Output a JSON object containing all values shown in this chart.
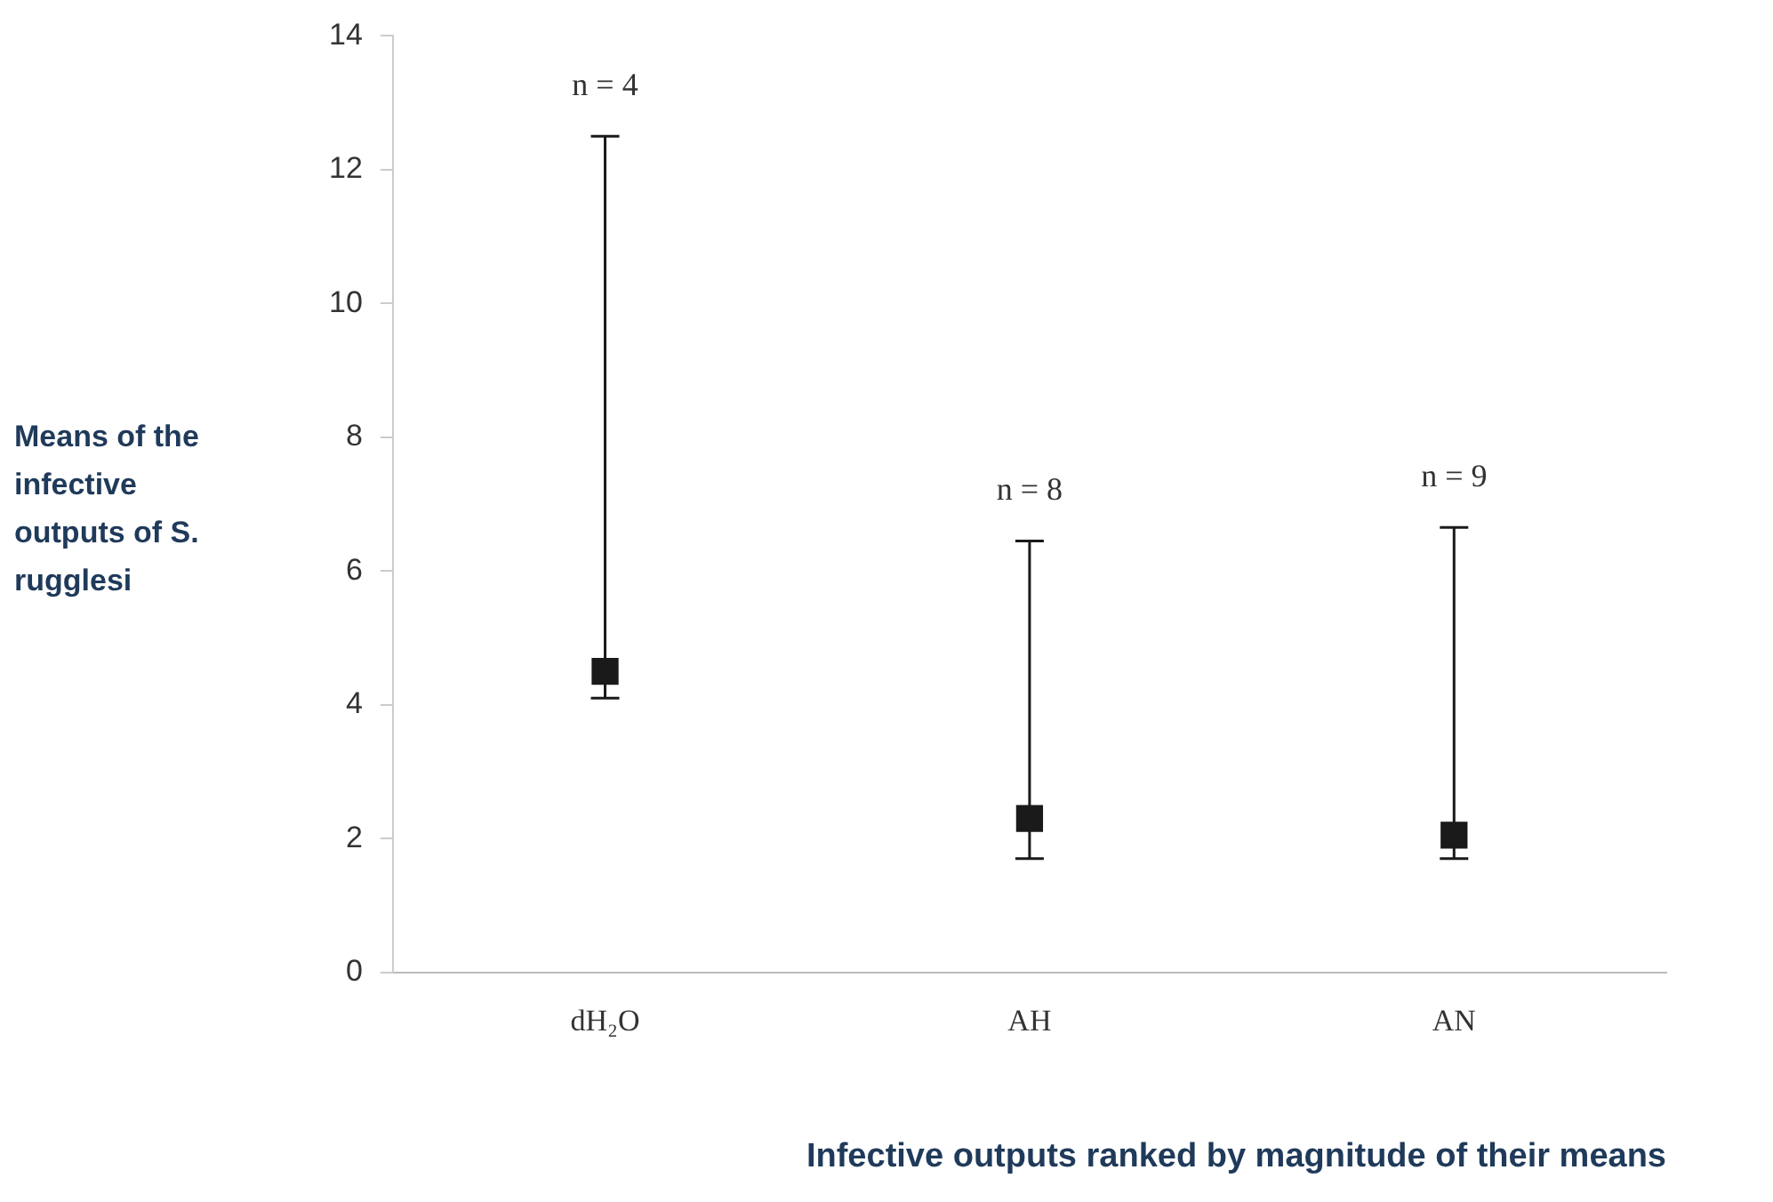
{
  "chart_data": {
    "type": "scatter",
    "xlabel": "Infective outputs ranked by magnitude of their means",
    "ylabel": "Means of the infective outputs of S. rugglesi",
    "categories": [
      "dH₂O",
      "AH",
      "AN"
    ],
    "values": [
      4.5,
      2.3,
      2.05
    ],
    "errors": [
      [
        4.1,
        12.5
      ],
      [
        1.7,
        6.45
      ],
      [
        1.7,
        6.65
      ]
    ],
    "color": "#1a1a1a",
    "marker": "square",
    "ylim": [
      0,
      14
    ],
    "yticks": [
      0,
      2,
      4,
      6,
      8,
      10,
      12,
      14
    ],
    "grid": false,
    "legend": false,
    "annotations": [
      "n = 4",
      "n = 8",
      "n = 9"
    ]
  }
}
